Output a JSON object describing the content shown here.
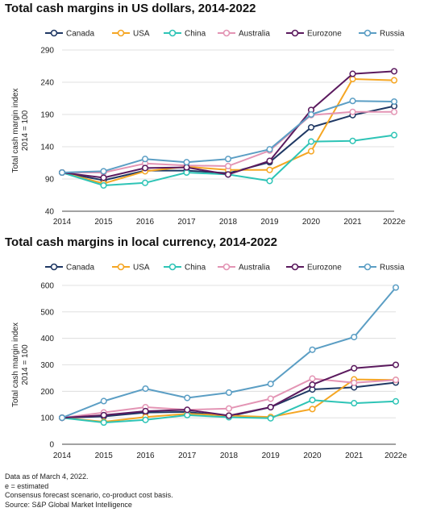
{
  "series_colors": {
    "Canada": "#1f3864",
    "USA": "#f5a623",
    "China": "#2ec4b6",
    "Australia": "#e394b4",
    "Eurozone": "#5b1a5e",
    "Russia": "#5b9ec4"
  },
  "chart_data": [
    {
      "type": "line",
      "title": "Total cash margins in US dollars, 2014-2022",
      "ylabel_lines": [
        "Total cash margin index",
        "2014 = 100"
      ],
      "xlabel": "",
      "categories": [
        "2014",
        "2015",
        "2016",
        "2017",
        "2018",
        "2019",
        "2020",
        "2021",
        "2022e"
      ],
      "ylim": [
        40,
        290
      ],
      "yticks": [
        40,
        90,
        140,
        190,
        240,
        290
      ],
      "grid": "horizontal",
      "legend_position": "top",
      "series": [
        {
          "name": "Canada",
          "values": [
            100,
            88,
            103,
            103,
            99,
            116,
            170,
            189,
            203
          ]
        },
        {
          "name": "USA",
          "values": [
            100,
            83,
            102,
            109,
            104,
            104,
            133,
            245,
            243
          ]
        },
        {
          "name": "China",
          "values": [
            100,
            80,
            84,
            100,
            97,
            87,
            148,
            149,
            158
          ]
        },
        {
          "name": "Australia",
          "values": [
            100,
            100,
            114,
            111,
            110,
            134,
            189,
            194,
            194
          ]
        },
        {
          "name": "Eurozone",
          "values": [
            100,
            92,
            107,
            108,
            97,
            118,
            197,
            253,
            257
          ]
        },
        {
          "name": "Russia",
          "values": [
            100,
            102,
            121,
            116,
            121,
            136,
            190,
            211,
            210
          ]
        }
      ]
    },
    {
      "type": "line",
      "title": "Total cash margins in local currency, 2014-2022",
      "ylabel_lines": [
        "Total cash margin index",
        "2014 = 100"
      ],
      "xlabel": "",
      "categories": [
        "2014",
        "2015",
        "2016",
        "2017",
        "2018",
        "2019",
        "2020",
        "2021",
        "2022e"
      ],
      "ylim": [
        0,
        600
      ],
      "yticks": [
        0,
        100,
        200,
        300,
        400,
        500,
        600
      ],
      "grid": "horizontal",
      "legend_position": "top",
      "series": [
        {
          "name": "Canada",
          "values": [
            100,
            105,
            120,
            122,
            105,
            140,
            207,
            215,
            233
          ]
        },
        {
          "name": "USA",
          "values": [
            100,
            85,
            103,
            115,
            108,
            103,
            133,
            245,
            243
          ]
        },
        {
          "name": "China",
          "values": [
            100,
            82,
            92,
            110,
            102,
            98,
            167,
            155,
            162
          ]
        },
        {
          "name": "Australia",
          "values": [
            100,
            120,
            140,
            130,
            135,
            172,
            248,
            232,
            243
          ]
        },
        {
          "name": "Eurozone",
          "values": [
            100,
            110,
            125,
            130,
            108,
            140,
            225,
            287,
            300
          ]
        },
        {
          "name": "Russia",
          "values": [
            100,
            163,
            210,
            175,
            195,
            228,
            357,
            405,
            592
          ]
        }
      ]
    }
  ],
  "notes": [
    "Data as of March 4, 2022.",
    "e = estimated",
    "Consensus forecast scenario, co-product cost basis.",
    "Source: S&P Global Market Intelligence"
  ]
}
